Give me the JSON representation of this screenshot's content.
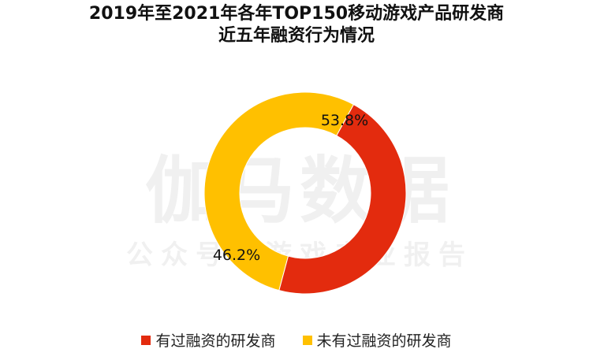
{
  "title": {
    "line1": "2019年至2021年各年TOP150移动游戏产品研发商",
    "line2": "近五年融资行为情况"
  },
  "watermark": {
    "main": "伽马数据",
    "sub": "公众号：游戏产业报告"
  },
  "chart_data": {
    "type": "pie",
    "donut": true,
    "categories": [
      "有过融资的研发商",
      "未有过融资的研发商"
    ],
    "values": [
      46.2,
      53.8
    ],
    "labels": [
      "46.2%",
      "53.8%"
    ],
    "colors": [
      "#E32B0E",
      "#FFC000"
    ],
    "legend_position": "bottom"
  }
}
